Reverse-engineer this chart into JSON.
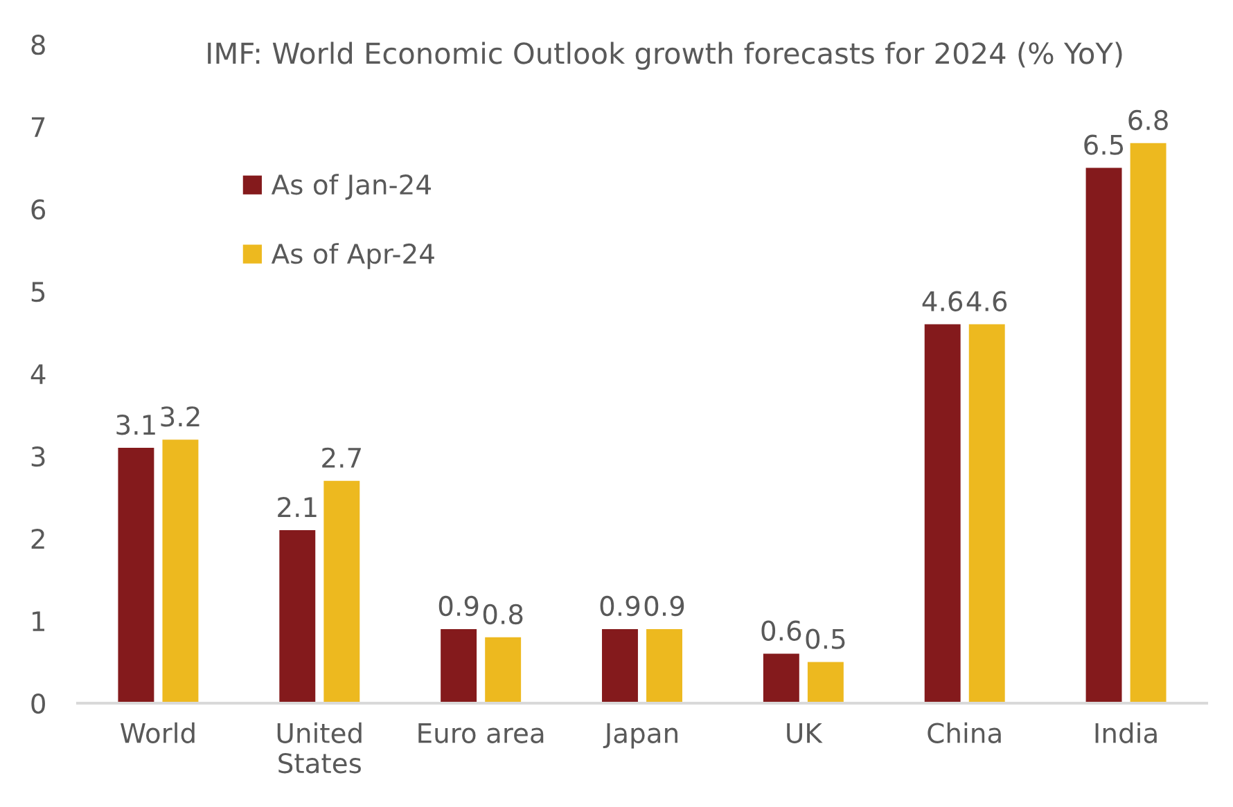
{
  "chart_data": {
    "type": "bar",
    "title": "IMF: World Economic Outlook growth forecasts for 2024 (% YoY)",
    "categories": [
      "World",
      "United States",
      "Euro area",
      "Japan",
      "UK",
      "China",
      "India"
    ],
    "series": [
      {
        "name": "As of Jan-24",
        "color": "#841a1c",
        "values": [
          3.1,
          2.1,
          0.9,
          0.9,
          0.6,
          4.6,
          6.5
        ]
      },
      {
        "name": "As of Apr-24",
        "color": "#edb91f",
        "values": [
          3.2,
          2.7,
          0.8,
          0.9,
          0.5,
          4.6,
          6.8
        ]
      }
    ],
    "ylim": [
      0,
      8
    ],
    "yticks": [
      0,
      1,
      2,
      3,
      4,
      5,
      6,
      7,
      8
    ],
    "grid": false,
    "legend": "top left",
    "data_labels": true
  }
}
